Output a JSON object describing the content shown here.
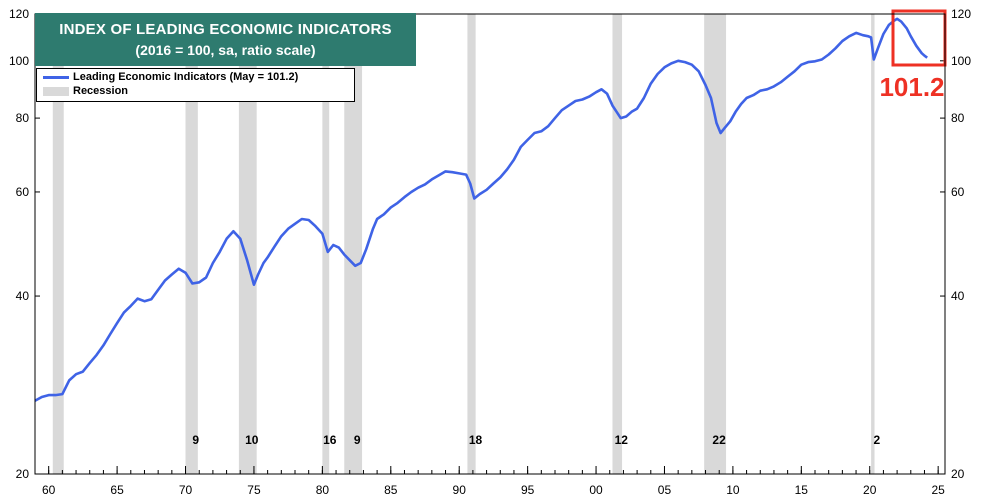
{
  "title": {
    "line1": "INDEX OF LEADING ECONOMIC INDICATORS",
    "line2": "(2016 = 100, sa, ratio scale)"
  },
  "legend": {
    "series_label": "Leading Economic Indicators (May = 101.2)",
    "recession_label": "Recession"
  },
  "callout": {
    "value_text": "101.2",
    "color": "#ee3124"
  },
  "colors": {
    "line": "#3f63e6",
    "recession": "#d9d9d9",
    "title_bg": "#2e7b6f"
  },
  "chart_data": {
    "type": "line",
    "scale": "log",
    "ylim": [
      20,
      120
    ],
    "xlim": [
      1959.0,
      2025.5
    ],
    "y_ticks": [
      20,
      40,
      60,
      80,
      100,
      120
    ],
    "x_ticks": [
      {
        "year": 1960,
        "label": "60"
      },
      {
        "year": 1965,
        "label": "65"
      },
      {
        "year": 1970,
        "label": "70"
      },
      {
        "year": 1975,
        "label": "75"
      },
      {
        "year": 1980,
        "label": "80"
      },
      {
        "year": 1985,
        "label": "85"
      },
      {
        "year": 1990,
        "label": "90"
      },
      {
        "year": 1995,
        "label": "95"
      },
      {
        "year": 2000,
        "label": "00"
      },
      {
        "year": 2005,
        "label": "05"
      },
      {
        "year": 2010,
        "label": "10"
      },
      {
        "year": 2015,
        "label": "15"
      },
      {
        "year": 2020,
        "label": "20"
      },
      {
        "year": 2025,
        "label": "25"
      }
    ],
    "recessions": [
      {
        "start": 1960.3,
        "end": 1961.1,
        "lead": ""
      },
      {
        "start": 1970.0,
        "end": 1970.9,
        "lead": "9"
      },
      {
        "start": 1973.9,
        "end": 1975.2,
        "lead": "10"
      },
      {
        "start": 1980.0,
        "end": 1980.5,
        "lead": "16"
      },
      {
        "start": 1981.6,
        "end": 1982.9,
        "lead": "9"
      },
      {
        "start": 1990.6,
        "end": 1991.2,
        "lead": "18"
      },
      {
        "start": 2001.2,
        "end": 2001.9,
        "lead": "12"
      },
      {
        "start": 2007.9,
        "end": 2009.5,
        "lead": "22"
      },
      {
        "start": 2020.1,
        "end": 2020.35,
        "lead": "2"
      }
    ],
    "series": [
      {
        "name": "Leading Economic Indicators",
        "x": [
          1959.0,
          1959.5,
          1960.0,
          1960.5,
          1961.0,
          1961.5,
          1962.0,
          1962.5,
          1963.0,
          1963.5,
          1964.0,
          1964.5,
          1965.0,
          1965.5,
          1966.0,
          1966.5,
          1967.0,
          1967.5,
          1968.0,
          1968.5,
          1969.0,
          1969.5,
          1970.0,
          1970.5,
          1971.0,
          1971.5,
          1972.0,
          1972.5,
          1973.0,
          1973.5,
          1974.0,
          1974.5,
          1975.0,
          1975.3,
          1975.7,
          1976.0,
          1976.5,
          1977.0,
          1977.5,
          1978.0,
          1978.5,
          1979.0,
          1979.5,
          1980.0,
          1980.4,
          1980.8,
          1981.2,
          1981.6,
          1982.0,
          1982.4,
          1982.8,
          1983.2,
          1983.7,
          1984.0,
          1984.5,
          1985.0,
          1985.5,
          1986.0,
          1986.5,
          1987.0,
          1987.5,
          1988.0,
          1988.5,
          1989.0,
          1989.5,
          1990.0,
          1990.5,
          1990.8,
          1991.1,
          1991.5,
          1992.0,
          1992.5,
          1993.0,
          1993.5,
          1994.0,
          1994.5,
          1995.0,
          1995.5,
          1996.0,
          1996.5,
          1997.0,
          1997.5,
          1998.0,
          1998.5,
          1999.0,
          1999.5,
          2000.0,
          2000.4,
          2000.8,
          2001.2,
          2001.5,
          2001.8,
          2002.2,
          2002.6,
          2003.0,
          2003.5,
          2004.0,
          2004.5,
          2005.0,
          2005.5,
          2006.0,
          2006.5,
          2007.0,
          2007.5,
          2008.0,
          2008.4,
          2008.8,
          2009.1,
          2009.4,
          2009.8,
          2010.2,
          2010.6,
          2011.0,
          2011.5,
          2012.0,
          2012.5,
          2013.0,
          2013.5,
          2014.0,
          2014.5,
          2015.0,
          2015.5,
          2016.0,
          2016.5,
          2017.0,
          2017.5,
          2018.0,
          2018.5,
          2019.0,
          2019.5,
          2019.9,
          2020.1,
          2020.3,
          2020.6,
          2021.0,
          2021.4,
          2021.8,
          2022.0,
          2022.3,
          2022.7,
          2023.0,
          2023.4,
          2023.8,
          2024.0,
          2024.2
        ],
        "values": [
          26.6,
          27.0,
          27.2,
          27.2,
          27.3,
          28.8,
          29.5,
          29.8,
          30.8,
          31.8,
          33.0,
          34.5,
          36.0,
          37.5,
          38.5,
          39.6,
          39.2,
          39.5,
          41.0,
          42.5,
          43.5,
          44.5,
          43.8,
          42.0,
          42.2,
          43.0,
          45.5,
          47.5,
          50.0,
          51.5,
          50.0,
          46.0,
          41.8,
          43.5,
          45.5,
          46.5,
          48.5,
          50.5,
          52.0,
          53.0,
          54.0,
          53.8,
          52.5,
          51.0,
          47.5,
          48.8,
          48.3,
          47.0,
          46.0,
          45.0,
          45.5,
          48.0,
          52.0,
          54.0,
          55.0,
          56.5,
          57.5,
          58.8,
          60.0,
          61.0,
          61.8,
          63.0,
          64.0,
          65.0,
          64.8,
          64.5,
          64.2,
          62.0,
          58.5,
          59.5,
          60.5,
          62.0,
          63.5,
          65.5,
          68.0,
          71.5,
          73.5,
          75.5,
          76.0,
          77.5,
          80.0,
          82.5,
          84.0,
          85.5,
          86.0,
          87.0,
          88.5,
          89.5,
          88.0,
          84.0,
          82.0,
          80.0,
          80.5,
          82.0,
          83.0,
          86.5,
          91.5,
          95.0,
          97.5,
          99.0,
          100.0,
          99.5,
          98.5,
          96.0,
          91.0,
          86.5,
          78.5,
          75.5,
          77.0,
          79.0,
          82.0,
          84.5,
          86.5,
          87.5,
          89.0,
          89.5,
          90.5,
          92.0,
          94.0,
          96.0,
          98.5,
          99.5,
          99.8,
          100.5,
          102.5,
          105.0,
          108.0,
          110.0,
          111.5,
          110.5,
          110.0,
          109.5,
          100.5,
          105.0,
          111.0,
          115.0,
          117.0,
          117.8,
          116.5,
          113.5,
          110.0,
          106.0,
          103.0,
          102.0,
          101.2
        ]
      }
    ]
  }
}
